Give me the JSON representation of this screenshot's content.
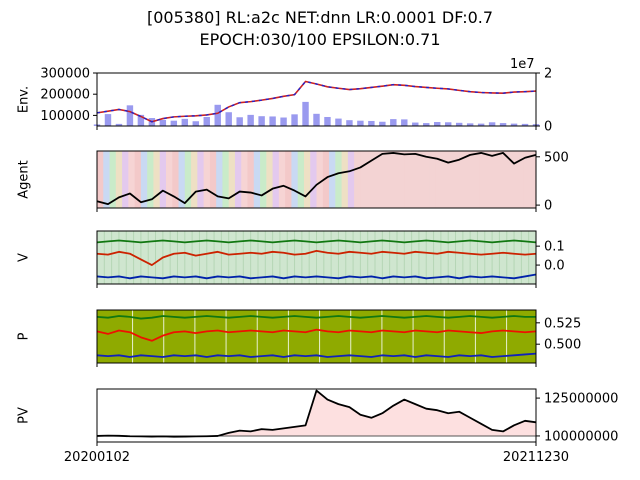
{
  "title_line1": "[005380] RL:a2c NET:dnn LR:0.0001 DF:0.7",
  "title_line2": "EPOCH:030/100 EPSILON:0.71",
  "x_start_label": "20200102",
  "x_end_label": "20211230",
  "chart_data": [
    {
      "type": "line",
      "ylabel": "Env.",
      "left_ticks": [
        "300000",
        "200000",
        "100000"
      ],
      "right_ticks": [
        "2",
        "0"
      ],
      "right_axis_multiplier": "1e7",
      "ylim": [
        50000,
        300000
      ],
      "y2lim": [
        0,
        20000000
      ],
      "series": [
        {
          "values": [
            112000,
            120000,
            128000,
            118000,
            95000,
            70000,
            85000,
            93000,
            96000,
            98000,
            102000,
            110000,
            140000,
            160000,
            165000,
            172000,
            180000,
            190000,
            198000,
            260000,
            248000,
            235000,
            228000,
            222000,
            226000,
            232000,
            238000,
            245000,
            242000,
            236000,
            232000,
            228000,
            225000,
            218000,
            212000,
            208000,
            206000,
            205000,
            210000,
            212000,
            215000
          ]
        },
        {
          "values": [
            600000,
            4500000,
            800000,
            7800000,
            4200000,
            3000000,
            2300000,
            2000000,
            2700000,
            1800000,
            3400000,
            8000000,
            5200000,
            3300000,
            4200000,
            3700000,
            3600000,
            3200000,
            4400000,
            9100000,
            4600000,
            3400000,
            2800000,
            2200000,
            2000000,
            1900000,
            1600000,
            2600000,
            2500000,
            1300000,
            1100000,
            1500000,
            1400000,
            1200000,
            1000000,
            900000,
            1400000,
            1100000,
            900000,
            800000,
            700000
          ]
        }
      ]
    },
    {
      "type": "line",
      "ylabel": "Agent",
      "right_ticks": [
        "500",
        "0"
      ],
      "ylim": [
        -30,
        560
      ],
      "series": [
        {
          "values": [
            40,
            10,
            80,
            120,
            30,
            60,
            150,
            90,
            20,
            140,
            160,
            90,
            70,
            140,
            130,
            100,
            170,
            200,
            150,
            90,
            210,
            290,
            330,
            350,
            390,
            460,
            530,
            540,
            525,
            530,
            500,
            480,
            440,
            470,
            520,
            540,
            510,
            540,
            430,
            490,
            520
          ]
        }
      ]
    },
    {
      "type": "line",
      "ylabel": "V",
      "right_ticks": [
        "0.1",
        "0.0"
      ],
      "ylim": [
        -0.1,
        0.18
      ],
      "series": [
        {
          "values": [
            0.12,
            0.125,
            0.13,
            0.125,
            0.12,
            0.125,
            0.13,
            0.125,
            0.12,
            0.125,
            0.13,
            0.125,
            0.12,
            0.125,
            0.13,
            0.125,
            0.12,
            0.125,
            0.13,
            0.125,
            0.12,
            0.125,
            0.13,
            0.125,
            0.12,
            0.125,
            0.13,
            0.125,
            0.12,
            0.125,
            0.13,
            0.125,
            0.12,
            0.125,
            0.13,
            0.125,
            0.12,
            0.125,
            0.13,
            0.125,
            0.12
          ]
        },
        {
          "values": [
            0.06,
            0.055,
            0.07,
            0.06,
            0.03,
            0.0,
            0.04,
            0.06,
            0.065,
            0.05,
            0.06,
            0.07,
            0.055,
            0.06,
            0.065,
            0.06,
            0.07,
            0.065,
            0.055,
            0.06,
            0.075,
            0.065,
            0.06,
            0.07,
            0.065,
            0.06,
            0.07,
            0.065,
            0.06,
            0.07,
            0.065,
            0.06,
            0.07,
            0.065,
            0.06,
            0.055,
            0.06,
            0.065,
            0.06,
            0.055,
            0.06
          ]
        },
        {
          "values": [
            -0.06,
            -0.065,
            -0.06,
            -0.07,
            -0.06,
            -0.065,
            -0.07,
            -0.06,
            -0.065,
            -0.06,
            -0.07,
            -0.06,
            -0.065,
            -0.06,
            -0.07,
            -0.065,
            -0.06,
            -0.07,
            -0.06,
            -0.065,
            -0.06,
            -0.065,
            -0.07,
            -0.06,
            -0.065,
            -0.06,
            -0.07,
            -0.06,
            -0.065,
            -0.06,
            -0.07,
            -0.065,
            -0.06,
            -0.07,
            -0.06,
            -0.065,
            -0.06,
            -0.065,
            -0.07,
            -0.06,
            -0.05
          ]
        }
      ]
    },
    {
      "type": "line",
      "ylabel": "P",
      "right_ticks": [
        "0.525",
        "0.500"
      ],
      "ylim": [
        0.478,
        0.54
      ],
      "series": [
        {
          "values": [
            0.532,
            0.531,
            0.533,
            0.532,
            0.53,
            0.531,
            0.533,
            0.532,
            0.531,
            0.532,
            0.533,
            0.532,
            0.531,
            0.532,
            0.533,
            0.532,
            0.531,
            0.532,
            0.533,
            0.532,
            0.531,
            0.532,
            0.533,
            0.532,
            0.531,
            0.532,
            0.533,
            0.532,
            0.531,
            0.532,
            0.533,
            0.532,
            0.531,
            0.532,
            0.533,
            0.532,
            0.531,
            0.532,
            0.533,
            0.532,
            0.532
          ]
        },
        {
          "values": [
            0.515,
            0.512,
            0.516,
            0.514,
            0.508,
            0.504,
            0.51,
            0.514,
            0.515,
            0.513,
            0.515,
            0.516,
            0.514,
            0.515,
            0.516,
            0.515,
            0.514,
            0.516,
            0.515,
            0.514,
            0.517,
            0.515,
            0.514,
            0.516,
            0.515,
            0.514,
            0.516,
            0.515,
            0.514,
            0.516,
            0.515,
            0.514,
            0.516,
            0.515,
            0.514,
            0.513,
            0.515,
            0.516,
            0.515,
            0.514,
            0.515
          ]
        },
        {
          "values": [
            0.487,
            0.486,
            0.487,
            0.485,
            0.487,
            0.486,
            0.485,
            0.487,
            0.486,
            0.487,
            0.485,
            0.487,
            0.486,
            0.487,
            0.485,
            0.486,
            0.487,
            0.485,
            0.487,
            0.486,
            0.487,
            0.485,
            0.486,
            0.487,
            0.486,
            0.485,
            0.487,
            0.486,
            0.487,
            0.485,
            0.487,
            0.486,
            0.485,
            0.487,
            0.486,
            0.487,
            0.485,
            0.486,
            0.487,
            0.488,
            0.489
          ]
        }
      ]
    },
    {
      "type": "line",
      "ylabel": "PV",
      "right_ticks": [
        "125000000",
        "100000000"
      ],
      "ylim": [
        96000000,
        131000000
      ],
      "baseline": 100000000,
      "series": [
        {
          "values": [
            100000000,
            100200000,
            100100000,
            99800000,
            99700000,
            99600000,
            99700000,
            99500000,
            99600000,
            99700000,
            99800000,
            100000000,
            102000000,
            103500000,
            103000000,
            104500000,
            104000000,
            105000000,
            106000000,
            107000000,
            130000000,
            124000000,
            121000000,
            119000000,
            114000000,
            112000000,
            115000000,
            120000000,
            124000000,
            121000000,
            118000000,
            117000000,
            115000000,
            116000000,
            112000000,
            108000000,
            104000000,
            103000000,
            107000000,
            110000000,
            109000000
          ]
        }
      ]
    }
  ]
}
